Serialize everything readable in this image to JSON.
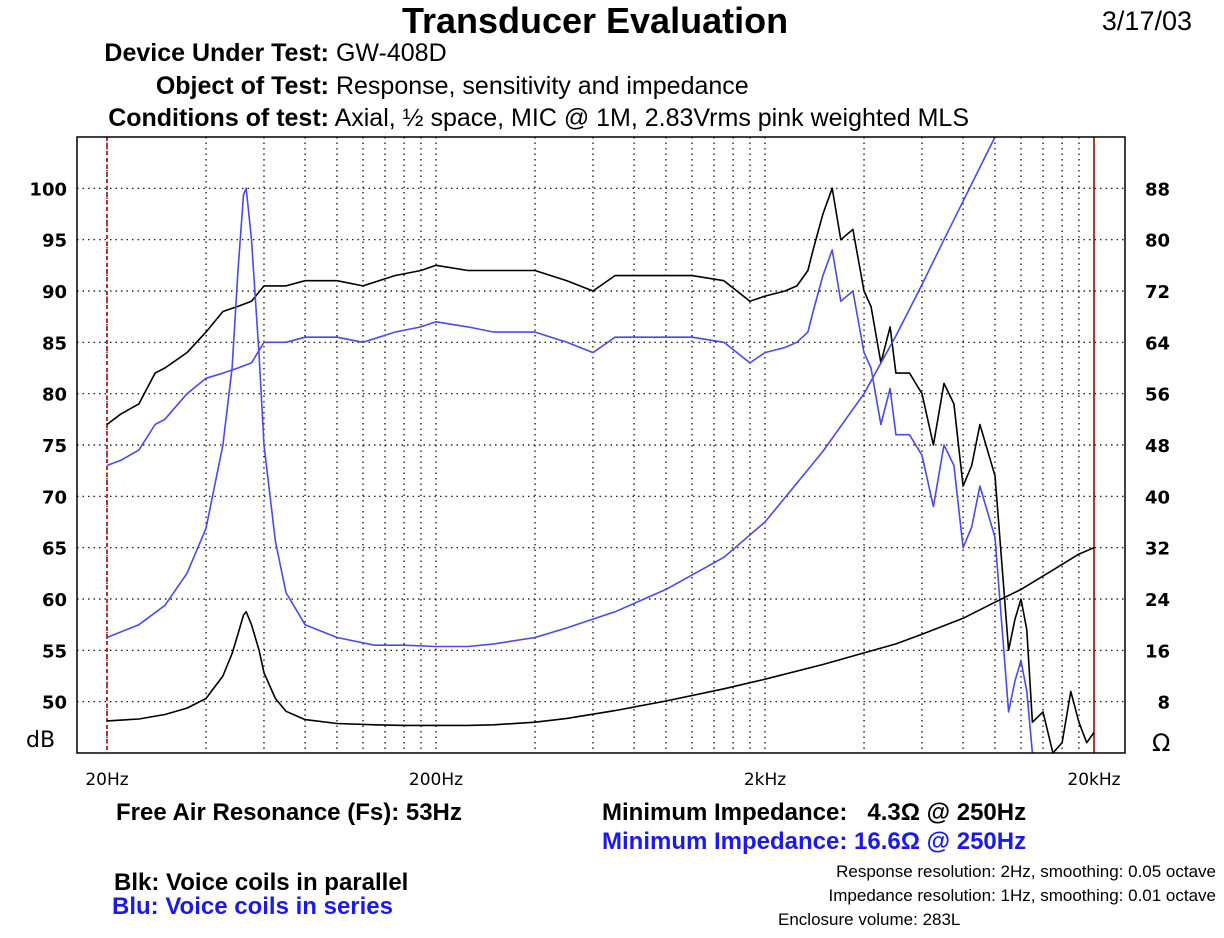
{
  "header": {
    "title": "Transducer Evaluation",
    "date": "3/17/03",
    "device_label": "Device Under Test:",
    "device_value": "GW-408D",
    "object_label": "Object of Test:",
    "object_value": "Response, sensitivity and impedance",
    "conditions_label": "Conditions of test:",
    "conditions_value": "Axial, ½ space, MIC @ 1M, 2.83Vrms pink weighted MLS"
  },
  "footer": {
    "fs": "Free Air Resonance (Fs): 53Hz",
    "min_imp_black": "Minimum Impedance:   4.3Ω @ 250Hz",
    "min_imp_blue": "Minimum Impedance: 16.6Ω @ 250Hz",
    "legend_black": "Blk: Voice coils in parallel",
    "legend_blue": "Blu: Voice coils in series",
    "resp_res": "Response resolution: 2Hz, smoothing: 0.05 octave",
    "imp_res": "Impedance resolution: 1Hz, smoothing: 0.01 octave",
    "enclosure": "Enclosure volume: 283L"
  },
  "colors": {
    "black_trace": "#000000",
    "blue_trace": "#4a4ae8",
    "marker": "#aa0000"
  },
  "chart_data": {
    "type": "line",
    "x_scale": "log",
    "xlim": [
      20,
      20000
    ],
    "x_ticks": [
      {
        "value": 20,
        "label": "20Hz"
      },
      {
        "value": 200,
        "label": "200Hz"
      },
      {
        "value": 2000,
        "label": "2kHz"
      },
      {
        "value": 20000,
        "label": "20kHz"
      }
    ],
    "y_left": {
      "unit": "dB",
      "ylim": [
        45,
        105
      ],
      "ticks": [
        100,
        95,
        90,
        85,
        80,
        75,
        70,
        65,
        60,
        55,
        50
      ]
    },
    "y_right": {
      "unit": "Ω",
      "ylim": [
        0,
        96
      ],
      "ticks": [
        88,
        80,
        72,
        64,
        56,
        48,
        40,
        32,
        24,
        16,
        8
      ]
    },
    "grid": true,
    "markers": [
      20,
      20000
    ],
    "series": [
      {
        "axis": "left",
        "color": "#000000",
        "x": [
          20,
          22,
          25,
          28,
          30,
          35,
          40,
          45,
          50,
          55,
          60,
          70,
          80,
          100,
          120,
          150,
          180,
          200,
          250,
          300,
          400,
          500,
          600,
          700,
          800,
          1000,
          1200,
          1500,
          1800,
          2000,
          2300,
          2500,
          2700,
          2800,
          3000,
          3200,
          3400,
          3700,
          4000,
          4200,
          4500,
          4800,
          5000,
          5500,
          6000,
          6500,
          7000,
          7500,
          8000,
          8500,
          9000,
          10000,
          11000,
          11500,
          12000,
          12500,
          13000,
          14000,
          15000,
          16000,
          17000,
          18000,
          19000,
          20000
        ],
        "y": [
          77,
          78,
          79,
          82,
          82.5,
          84,
          86,
          88,
          88.5,
          89,
          90.5,
          90.5,
          91,
          91,
          90.5,
          91.5,
          92,
          92.5,
          92,
          92,
          92,
          91,
          90,
          91.5,
          91.5,
          91.5,
          91.5,
          91,
          89,
          89.5,
          90,
          90.5,
          92,
          94,
          97.5,
          100,
          95,
          96,
          90,
          88.5,
          83,
          86.5,
          82,
          82,
          80,
          75,
          81,
          79,
          71,
          73,
          77,
          72,
          55,
          58,
          60,
          57,
          48,
          49,
          45,
          46,
          51,
          48,
          46,
          47
        ]
      },
      {
        "axis": "left",
        "color": "#4a4ae8",
        "x": [
          20,
          22,
          25,
          28,
          30,
          35,
          40,
          45,
          50,
          55,
          60,
          70,
          80,
          100,
          120,
          150,
          180,
          200,
          250,
          300,
          400,
          500,
          600,
          700,
          800,
          1000,
          1200,
          1500,
          1800,
          2000,
          2300,
          2500,
          2700,
          2800,
          3000,
          3200,
          3400,
          3700,
          4000,
          4200,
          4500,
          4800,
          5000,
          5500,
          6000,
          6500,
          7000,
          7500,
          8000,
          8500,
          9000,
          10000,
          11000,
          11500,
          12000,
          12500,
          13000
        ],
        "y": [
          73,
          73.5,
          74.5,
          77,
          77.5,
          80,
          81.5,
          82,
          82.5,
          83,
          85,
          85,
          85.5,
          85.5,
          85,
          86,
          86.5,
          87,
          86.5,
          86,
          86,
          85,
          84,
          85.5,
          85.5,
          85.5,
          85.5,
          85,
          83,
          84,
          84.5,
          85,
          86,
          88,
          91.5,
          94,
          89,
          90,
          84,
          82.5,
          77,
          80.5,
          76,
          76,
          74,
          69,
          75,
          73,
          65,
          67,
          71,
          66,
          49,
          52,
          54,
          51,
          44
        ]
      },
      {
        "axis": "right",
        "color": "#4a4ae8",
        "x": [
          20,
          25,
          30,
          35,
          40,
          45,
          48,
          50,
          52,
          53,
          55,
          58,
          60,
          65,
          70,
          80,
          100,
          130,
          160,
          200,
          250,
          300,
          400,
          500,
          700,
          1000,
          1500,
          2000,
          3000,
          4000,
          5000,
          6000,
          7000,
          8000,
          10000
        ],
        "y": [
          18,
          20,
          23,
          28,
          35,
          48,
          60,
          75,
          87,
          88,
          80,
          62,
          48,
          33,
          25,
          20,
          18,
          16.8,
          16.8,
          16.6,
          16.6,
          17,
          18,
          19.5,
          22,
          25.5,
          30.5,
          36,
          47,
          56,
          65,
          73,
          80,
          86,
          96
        ]
      },
      {
        "axis": "right",
        "color": "#000000",
        "x": [
          20,
          25,
          30,
          35,
          40,
          45,
          48,
          50,
          52,
          53,
          55,
          58,
          60,
          65,
          70,
          80,
          100,
          130,
          160,
          200,
          250,
          300,
          400,
          500,
          700,
          1000,
          1500,
          2000,
          3000,
          4000,
          5000,
          6000,
          8000,
          10000,
          12000,
          15000,
          18000,
          20000
        ],
        "y": [
          5,
          5.3,
          6,
          7,
          8.5,
          12,
          15.5,
          18.5,
          21.5,
          22,
          20,
          16,
          12.5,
          8.5,
          6.5,
          5.2,
          4.6,
          4.4,
          4.3,
          4.3,
          4.3,
          4.4,
          4.8,
          5.4,
          6.6,
          8.1,
          10,
          11.5,
          13.8,
          15.6,
          17,
          18.5,
          21,
          23.5,
          25.5,
          28.5,
          31,
          32
        ]
      }
    ]
  }
}
